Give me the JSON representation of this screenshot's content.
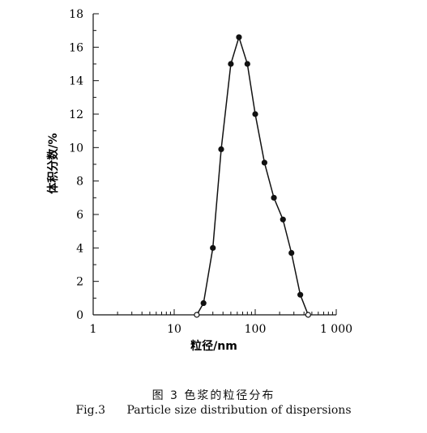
{
  "chart_data": {
    "type": "line",
    "xscale": "log",
    "xlim": [
      1,
      1000
    ],
    "ylim": [
      0,
      18
    ],
    "xticks": [
      1,
      10,
      100,
      1000
    ],
    "xtick_labels": [
      "1",
      "10",
      "100",
      "1 000"
    ],
    "yticks": [
      0,
      2,
      4,
      6,
      8,
      10,
      12,
      14,
      16,
      18
    ],
    "ytick_labels": [
      "0",
      "2",
      "4",
      "6",
      "8",
      "10",
      "12",
      "14",
      "16",
      "18"
    ],
    "xlabel": "粒径/nm",
    "ylabel": "体积分数/%",
    "grid": false,
    "series": [
      {
        "x": [
          19,
          23,
          30,
          38,
          50,
          63,
          80,
          100,
          130,
          170,
          220,
          280,
          360,
          450
        ],
        "y": [
          0,
          0.7,
          4.0,
          9.9,
          15.0,
          16.6,
          15.0,
          12.0,
          9.1,
          7.0,
          5.7,
          3.7,
          1.2,
          0
        ],
        "color": "#111111"
      }
    ]
  },
  "caption": {
    "cn": "图 3 色浆的粒径分布",
    "en_fig": "Fig.3",
    "en_text": "Particle size distribution of dispersions"
  }
}
